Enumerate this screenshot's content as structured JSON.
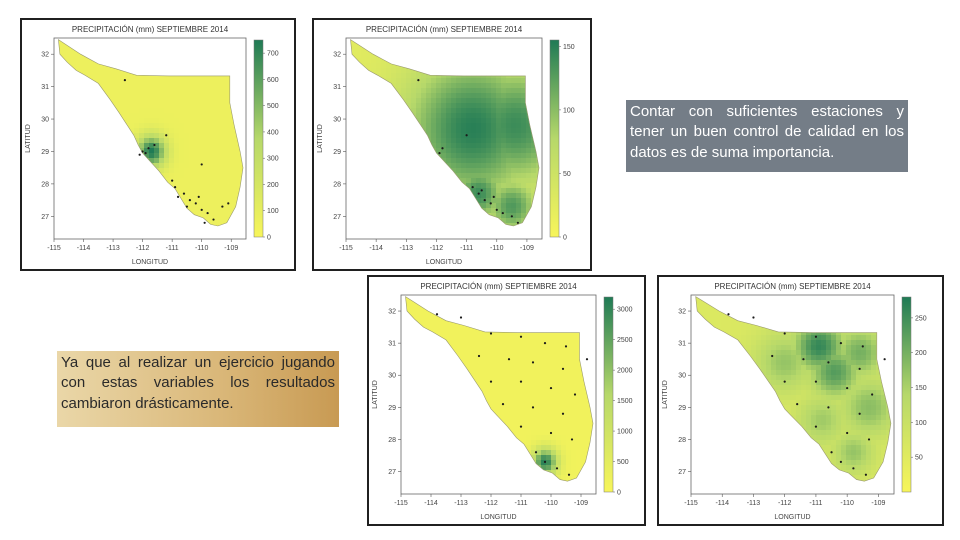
{
  "colors": {
    "low": "#f7f55a",
    "mid": "#b6d86a",
    "high": "#1f7a55",
    "frame": "#202020",
    "right_caption_bg": "#747d87",
    "left_caption_bg": "#d9b677"
  },
  "captions": {
    "right": "Contar con suficientes estaciones y tener un buen control de calidad en los datos es de suma importancia.",
    "left": "Ya que al realizar un ejercicio jugando con estas variables los resultados cambiaron drásticamente."
  },
  "chart_data": [
    {
      "type": "heatmap",
      "title": "PRECIPITACIÓN (mm) SEPTIEMBRE 2014",
      "xlabel": "LONGITUD",
      "ylabel": "LATITUD",
      "x_ticks": [
        "-115",
        "-114",
        "-113",
        "-112",
        "-111",
        "-110",
        "-109"
      ],
      "y_ticks": [
        "27",
        "28",
        "29",
        "30",
        "31",
        "32"
      ],
      "xlim": [
        -115,
        -108.5
      ],
      "ylim": [
        26.3,
        32.5
      ],
      "colorbar": {
        "ticks": [
          "0",
          "100",
          "200",
          "300",
          "400",
          "500",
          "600",
          "700"
        ],
        "min": 0,
        "max": 750
      },
      "hotspots": [
        {
          "lon": -111.7,
          "lat": 29.0,
          "value": 750,
          "radius": 0.35
        }
      ],
      "background_value": 60,
      "stations": [
        [
          -111.8,
          29.1
        ],
        [
          -111.9,
          28.95
        ],
        [
          -112.0,
          29.0
        ],
        [
          -111.6,
          29.2
        ],
        [
          -112.1,
          28.9
        ],
        [
          -111.0,
          28.1
        ],
        [
          -110.9,
          27.9
        ],
        [
          -110.6,
          27.7
        ],
        [
          -110.4,
          27.5
        ],
        [
          -110.2,
          27.4
        ],
        [
          -110.0,
          27.2
        ],
        [
          -109.8,
          27.1
        ],
        [
          -109.6,
          26.9
        ],
        [
          -109.3,
          27.3
        ],
        [
          -109.1,
          27.4
        ],
        [
          -110.8,
          27.6
        ],
        [
          -110.5,
          27.3
        ],
        [
          -109.9,
          26.8
        ],
        [
          -110.1,
          27.6
        ],
        [
          -111.2,
          29.5
        ],
        [
          -112.6,
          31.2
        ],
        [
          -110.0,
          28.6
        ]
      ]
    },
    {
      "type": "heatmap",
      "title": "PRECIPITACIÓN (mm) SEPTIEMBRE 2014",
      "xlabel": "LONGITUD",
      "ylabel": "LATITUD",
      "x_ticks": [
        "-115",
        "-114",
        "-113",
        "-112",
        "-111",
        "-110",
        "-109"
      ],
      "y_ticks": [
        "27",
        "28",
        "29",
        "30",
        "31",
        "32"
      ],
      "xlim": [
        -115,
        -108.5
      ],
      "ylim": [
        26.3,
        32.5
      ],
      "colorbar": {
        "ticks": [
          "0",
          "50",
          "100",
          "150"
        ],
        "min": 0,
        "max": 155
      },
      "hotspots": [
        {
          "lon": -110.8,
          "lat": 29.7,
          "value": 150,
          "radius": 1.6
        },
        {
          "lon": -109.4,
          "lat": 29.8,
          "value": 140,
          "radius": 1.3
        },
        {
          "lon": -110.6,
          "lat": 27.7,
          "value": 140,
          "radius": 0.6
        },
        {
          "lon": -109.5,
          "lat": 27.3,
          "value": 130,
          "radius": 0.6
        }
      ],
      "background_value": 25,
      "stations": [
        [
          -111.8,
          29.1
        ],
        [
          -111.0,
          29.5
        ],
        [
          -110.8,
          27.9
        ],
        [
          -110.6,
          27.7
        ],
        [
          -110.4,
          27.5
        ],
        [
          -110.2,
          27.4
        ],
        [
          -110.0,
          27.2
        ],
        [
          -109.8,
          27.1
        ],
        [
          -109.5,
          27.0
        ],
        [
          -110.5,
          27.8
        ],
        [
          -111.9,
          28.95
        ],
        [
          -109.3,
          26.8
        ],
        [
          -112.6,
          31.2
        ],
        [
          -110.1,
          27.6
        ]
      ]
    },
    {
      "type": "heatmap",
      "title": "PRECIPITACIÓN (mm) SEPTIEMBRE 2014",
      "xlabel": "LONGITUD",
      "ylabel": "LATITUD",
      "x_ticks": [
        "-115",
        "-114",
        "-113",
        "-112",
        "-111",
        "-110",
        "-109"
      ],
      "y_ticks": [
        "27",
        "28",
        "29",
        "30",
        "31",
        "32"
      ],
      "xlim": [
        -115,
        -108.5
      ],
      "ylim": [
        26.3,
        32.5
      ],
      "colorbar": {
        "ticks": [
          "0",
          "500",
          "1000",
          "1500",
          "2000",
          "2500",
          "3000"
        ],
        "min": 0,
        "max": 3200
      },
      "hotspots": [
        {
          "lon": -110.2,
          "lat": 27.3,
          "value": 3100,
          "radius": 0.3
        }
      ],
      "background_value": 150,
      "stations": [
        [
          -113.0,
          31.8
        ],
        [
          -112.0,
          31.3
        ],
        [
          -111.0,
          31.2
        ],
        [
          -110.2,
          31.0
        ],
        [
          -109.5,
          30.9
        ],
        [
          -112.4,
          30.6
        ],
        [
          -111.4,
          30.5
        ],
        [
          -110.6,
          30.4
        ],
        [
          -109.6,
          30.2
        ],
        [
          -112.0,
          29.8
        ],
        [
          -111.0,
          29.8
        ],
        [
          -110.0,
          29.6
        ],
        [
          -109.2,
          29.4
        ],
        [
          -111.6,
          29.1
        ],
        [
          -110.6,
          29.0
        ],
        [
          -109.6,
          28.8
        ],
        [
          -111.0,
          28.4
        ],
        [
          -110.0,
          28.2
        ],
        [
          -109.3,
          28.0
        ],
        [
          -110.5,
          27.6
        ],
        [
          -110.2,
          27.3
        ],
        [
          -109.8,
          27.1
        ],
        [
          -109.4,
          26.9
        ],
        [
          -113.8,
          31.9
        ],
        [
          -108.8,
          30.5
        ]
      ]
    },
    {
      "type": "heatmap",
      "title": "PRECIPITACIÓN (mm) SEPTIEMBRE 2014",
      "xlabel": "LONGITUD",
      "ylabel": "LATITUD",
      "x_ticks": [
        "-115",
        "-114",
        "-113",
        "-112",
        "-111",
        "-110",
        "-109"
      ],
      "y_ticks": [
        "27",
        "28",
        "29",
        "30",
        "31",
        "32"
      ],
      "xlim": [
        -115,
        -108.5
      ],
      "ylim": [
        26.3,
        32.5
      ],
      "colorbar": {
        "ticks": [
          "50",
          "100",
          "150",
          "200",
          "250"
        ],
        "min": 0,
        "max": 280
      },
      "hotspots": [
        {
          "lon": -110.9,
          "lat": 30.9,
          "value": 260,
          "radius": 0.6
        },
        {
          "lon": -110.4,
          "lat": 30.1,
          "value": 230,
          "radius": 0.6
        },
        {
          "lon": -109.6,
          "lat": 30.7,
          "value": 200,
          "radius": 0.6
        },
        {
          "lon": -112.0,
          "lat": 30.4,
          "value": 170,
          "radius": 0.7
        },
        {
          "lon": -109.3,
          "lat": 29.0,
          "value": 180,
          "radius": 0.7
        },
        {
          "lon": -110.8,
          "lat": 28.6,
          "value": 160,
          "radius": 0.6
        },
        {
          "lon": -109.8,
          "lat": 27.6,
          "value": 170,
          "radius": 0.5
        }
      ],
      "background_value": 60,
      "stations": [
        [
          -113.0,
          31.8
        ],
        [
          -112.0,
          31.3
        ],
        [
          -111.0,
          31.2
        ],
        [
          -110.2,
          31.0
        ],
        [
          -109.5,
          30.9
        ],
        [
          -112.4,
          30.6
        ],
        [
          -111.4,
          30.5
        ],
        [
          -110.6,
          30.4
        ],
        [
          -109.6,
          30.2
        ],
        [
          -112.0,
          29.8
        ],
        [
          -111.0,
          29.8
        ],
        [
          -110.0,
          29.6
        ],
        [
          -109.2,
          29.4
        ],
        [
          -111.6,
          29.1
        ],
        [
          -110.6,
          29.0
        ],
        [
          -109.6,
          28.8
        ],
        [
          -111.0,
          28.4
        ],
        [
          -110.0,
          28.2
        ],
        [
          -109.3,
          28.0
        ],
        [
          -110.5,
          27.6
        ],
        [
          -110.2,
          27.3
        ],
        [
          -109.8,
          27.1
        ],
        [
          -109.4,
          26.9
        ],
        [
          -113.8,
          31.9
        ],
        [
          -108.8,
          30.5
        ]
      ]
    }
  ]
}
